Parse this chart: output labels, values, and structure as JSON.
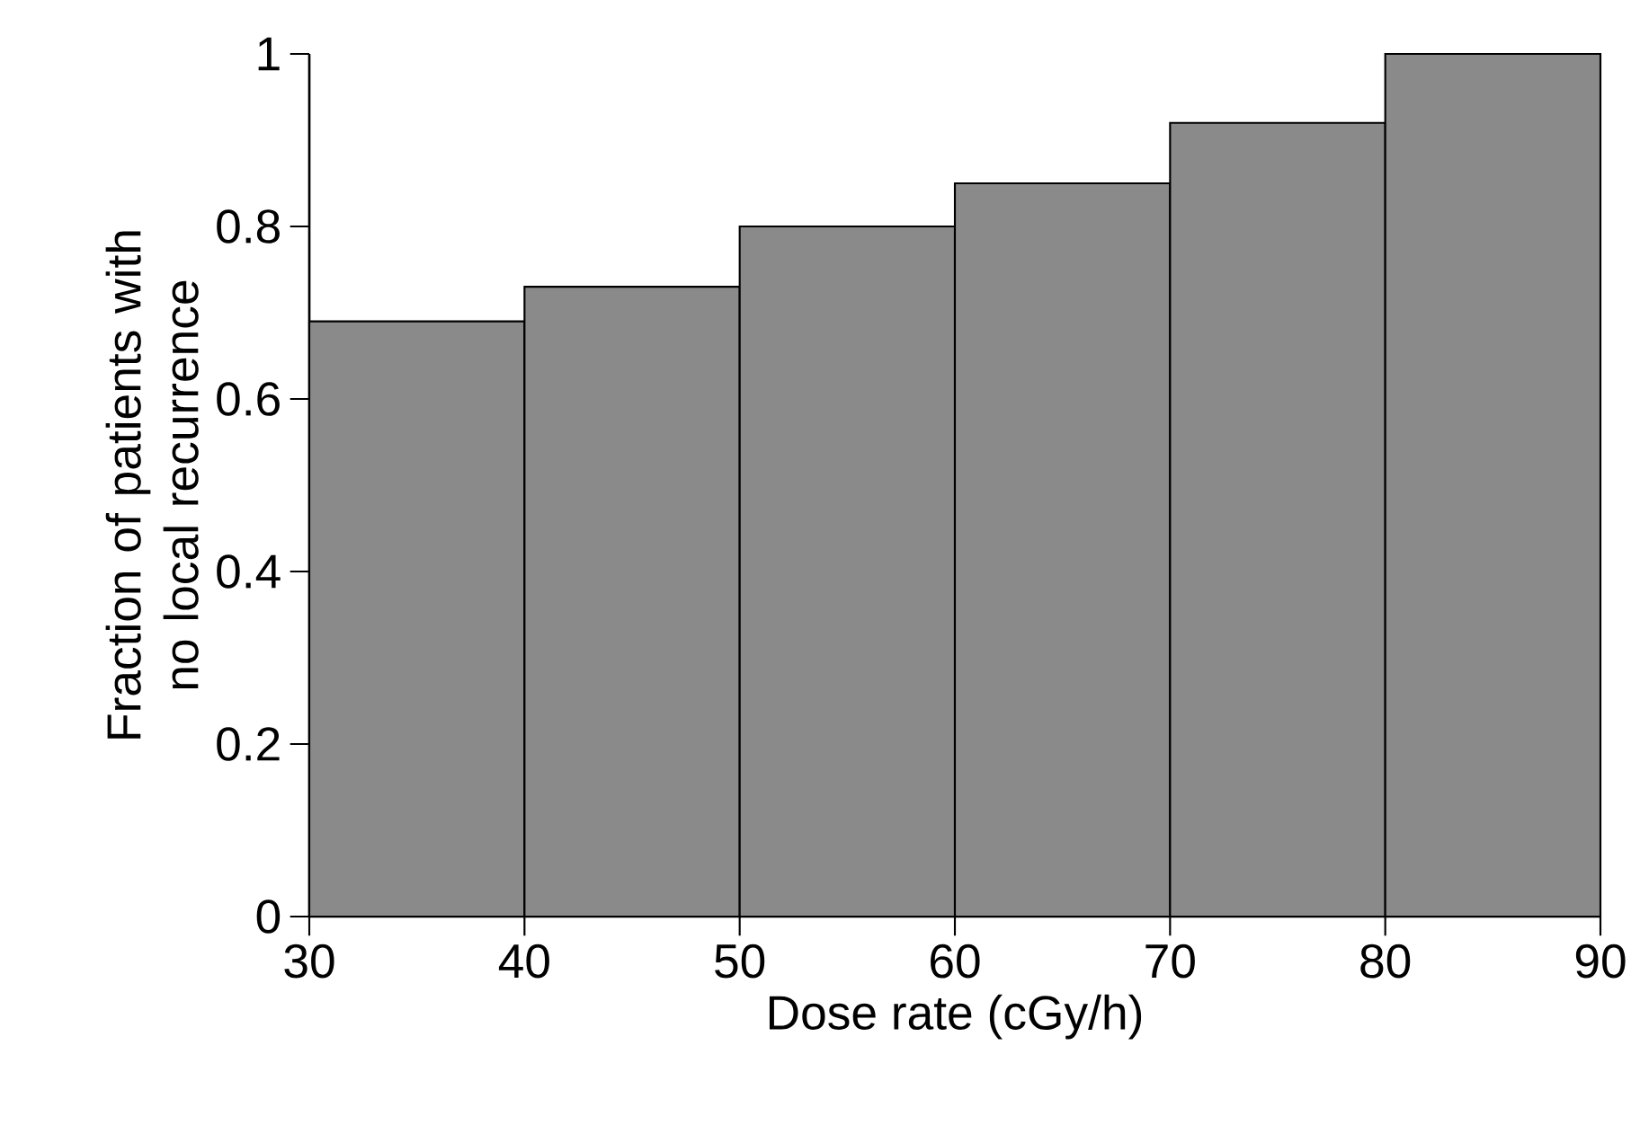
{
  "chart_data": {
    "type": "histogram",
    "bins": [
      30,
      40,
      50,
      60,
      70,
      80,
      90
    ],
    "values": [
      0.69,
      0.73,
      0.8,
      0.85,
      0.92,
      1.0
    ],
    "color": "#8a8a8a",
    "xlabel": "Dose rate (cGy/h)",
    "ylabel": "Fraction of patients with no local recurrence",
    "xlim": [
      30,
      90
    ],
    "xticks": [
      30,
      40,
      50,
      60,
      70,
      80,
      90
    ],
    "ylim": [
      0,
      1
    ],
    "yticks": [
      0,
      0.2,
      0.4,
      0.6,
      0.8,
      1
    ]
  }
}
